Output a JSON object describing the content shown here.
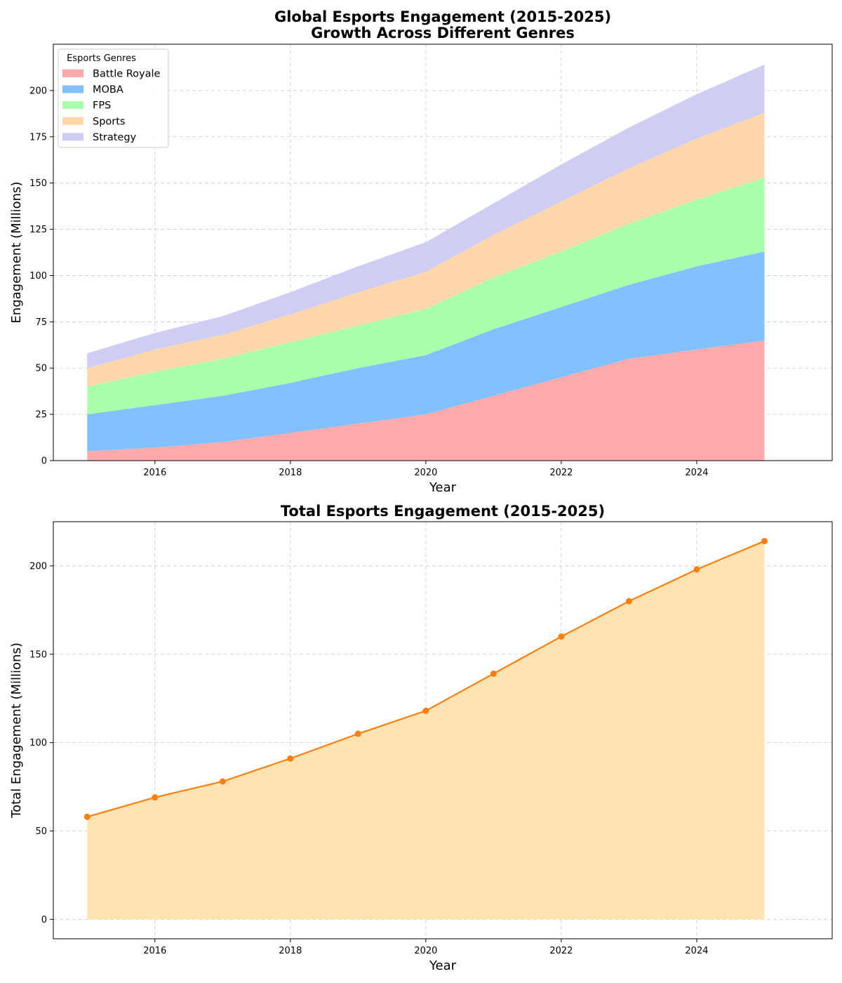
{
  "chart_data": [
    {
      "type": "area",
      "stacked": true,
      "title": "Global Esports Engagement (2015-2025)\nGrowth Across Different Genres",
      "title_lines": [
        "Global Esports Engagement (2015-2025)",
        "Growth Across Different Genres"
      ],
      "xlabel": "Year",
      "ylabel": "Engagement (Millions)",
      "x": [
        2015,
        2016,
        2017,
        2018,
        2019,
        2020,
        2021,
        2022,
        2023,
        2024,
        2025
      ],
      "xlim": [
        2014.5,
        2026.0
      ],
      "ylim": [
        0,
        225
      ],
      "xticks": [
        2016,
        2018,
        2020,
        2022,
        2024
      ],
      "yticks": [
        0,
        25,
        50,
        75,
        100,
        125,
        150,
        175,
        200
      ],
      "grid": true,
      "legend": {
        "title": "Esports Genres",
        "placement": "top-left"
      },
      "series": [
        {
          "name": "Battle Royale",
          "color": "#ffaaaa",
          "values": [
            5,
            7,
            10,
            15,
            20,
            25,
            35,
            45,
            55,
            60,
            65
          ]
        },
        {
          "name": "MOBA",
          "color": "#82c1ff",
          "values": [
            20,
            23,
            25,
            27,
            30,
            32,
            36,
            38,
            40,
            45,
            48
          ]
        },
        {
          "name": "FPS",
          "color": "#aaffaa",
          "values": [
            15,
            18,
            20,
            22,
            23,
            25,
            28,
            30,
            33,
            36,
            40
          ]
        },
        {
          "name": "Sports",
          "color": "#ffd7aa",
          "values": [
            10,
            12,
            13,
            15,
            18,
            20,
            23,
            27,
            30,
            33,
            35
          ]
        },
        {
          "name": "Strategy",
          "color": "#cfcdf4",
          "values": [
            8,
            9,
            10,
            12,
            14,
            16,
            17,
            20,
            22,
            24,
            26
          ]
        }
      ]
    },
    {
      "type": "line",
      "title": "Total Esports Engagement (2015-2025)",
      "title_lines": [
        "Total Esports Engagement (2015-2025)"
      ],
      "xlabel": "Year",
      "ylabel": "Total Engagement (Millions)",
      "x": [
        2015,
        2016,
        2017,
        2018,
        2019,
        2020,
        2021,
        2022,
        2023,
        2024,
        2025
      ],
      "xlim": [
        2014.5,
        2026.0
      ],
      "ylim": [
        -11,
        225
      ],
      "xticks": [
        2016,
        2018,
        2020,
        2022,
        2024
      ],
      "yticks": [
        0,
        50,
        100,
        150,
        200
      ],
      "grid": true,
      "fill_color": "#ffe4b2",
      "line_color": "#ff7f0e",
      "series": [
        {
          "values": [
            58,
            69,
            78,
            91,
            105,
            118,
            139,
            160,
            180,
            198,
            214
          ]
        }
      ]
    }
  ]
}
